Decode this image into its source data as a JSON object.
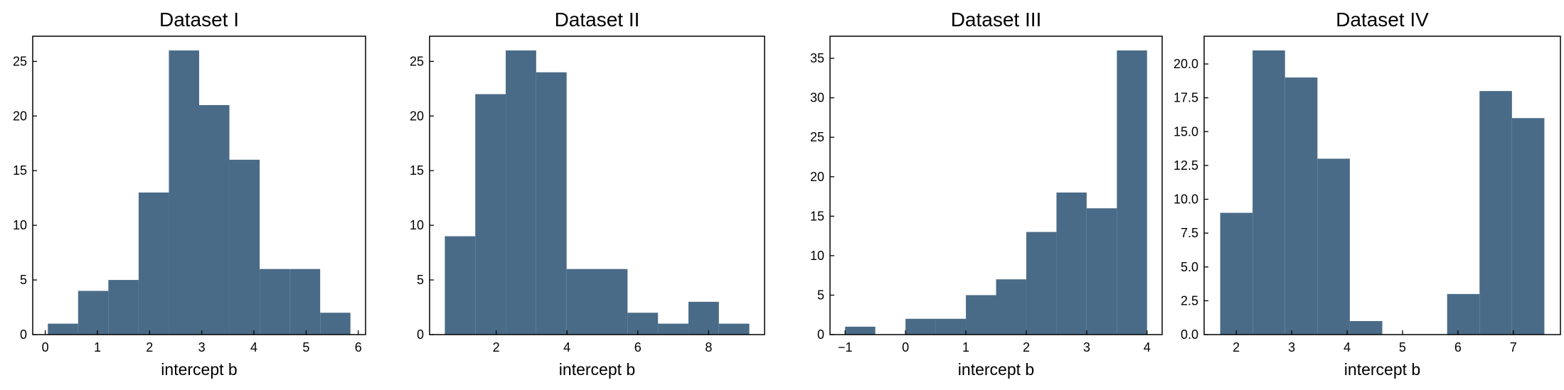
{
  "chart_data": [
    {
      "type": "bar",
      "title": "Dataset I",
      "xlabel": "intercept b",
      "ylabel": "",
      "bin_edges": [
        0.05,
        0.63,
        1.21,
        1.79,
        2.37,
        2.95,
        3.53,
        4.11,
        4.69,
        5.27,
        5.85
      ],
      "values": [
        1,
        4,
        5,
        13,
        26,
        21,
        16,
        6,
        6,
        2
      ],
      "xlim": [
        -0.24,
        6.14
      ],
      "ylim": [
        0,
        27.3
      ],
      "xticks": [
        0,
        1,
        2,
        3,
        4,
        5,
        6
      ],
      "yticks": [
        0,
        5,
        10,
        15,
        20,
        25
      ],
      "color": "#4a6b87",
      "grid": false
    },
    {
      "type": "bar",
      "title": "Dataset II",
      "xlabel": "intercept b",
      "ylabel": "",
      "bin_edges": [
        0.55,
        1.41,
        2.27,
        3.13,
        3.99,
        4.85,
        5.71,
        6.57,
        7.43,
        8.29,
        9.15
      ],
      "values": [
        9,
        22,
        26,
        24,
        6,
        6,
        2,
        1,
        3,
        1
      ],
      "xlim": [
        0.12,
        9.58
      ],
      "ylim": [
        0,
        27.3
      ],
      "xticks": [
        2,
        4,
        6,
        8
      ],
      "yticks": [
        0,
        5,
        10,
        15,
        20,
        25
      ],
      "color": "#4a6b87",
      "grid": false
    },
    {
      "type": "bar",
      "title": "Dataset III",
      "xlabel": "intercept b",
      "ylabel": "",
      "bin_edges": [
        -1.0,
        -0.5,
        0.0,
        0.5,
        1.0,
        1.5,
        2.0,
        2.5,
        3.0,
        3.5,
        4.0
      ],
      "values": [
        1,
        0,
        2,
        2,
        5,
        7,
        13,
        18,
        16,
        36
      ],
      "xlim": [
        -1.25,
        4.25
      ],
      "ylim": [
        0,
        37.8
      ],
      "xticks": [
        -1,
        0,
        1,
        2,
        3,
        4
      ],
      "xtick_labels": [
        "−1",
        "0",
        "1",
        "2",
        "3",
        "4"
      ],
      "yticks": [
        0,
        5,
        10,
        15,
        20,
        25,
        30,
        35
      ],
      "color": "#4a6b87",
      "grid": false
    },
    {
      "type": "bar",
      "title": "Dataset IV",
      "xlabel": "intercept b",
      "ylabel": "",
      "bin_edges": [
        1.71,
        2.295,
        2.88,
        3.465,
        4.05,
        4.635,
        5.22,
        5.805,
        6.39,
        6.975,
        7.56
      ],
      "values": [
        9,
        21,
        19,
        13,
        1,
        0,
        0,
        3,
        18,
        16
      ],
      "xlim": [
        1.42,
        7.85
      ],
      "ylim": [
        0,
        22.05
      ],
      "xticks": [
        2,
        3,
        4,
        5,
        6,
        7
      ],
      "yticks": [
        0,
        2.5,
        5,
        7.5,
        10,
        12.5,
        15,
        17.5,
        20
      ],
      "ytick_labels": [
        "0.0",
        "2.5",
        "5.0",
        "7.5",
        "10.0",
        "12.5",
        "15.0",
        "17.5",
        "20.0"
      ],
      "color": "#4a6b87",
      "grid": false
    }
  ]
}
